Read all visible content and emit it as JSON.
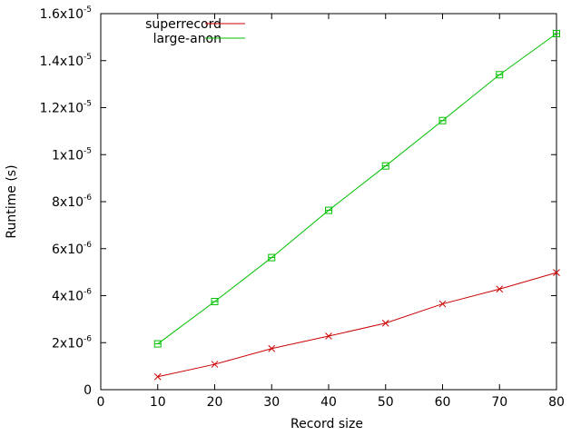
{
  "chart_data": {
    "type": "line",
    "title": "",
    "xlabel": "Record size",
    "ylabel": "Runtime (s)",
    "xlim": [
      0,
      80
    ],
    "ylim": [
      0,
      1.6e-05
    ],
    "grid": false,
    "legend_position": "top-left",
    "x_ticks": [
      {
        "value": 0,
        "label": "0"
      },
      {
        "value": 10,
        "label": "10"
      },
      {
        "value": 20,
        "label": "20"
      },
      {
        "value": 30,
        "label": "30"
      },
      {
        "value": 40,
        "label": "40"
      },
      {
        "value": 50,
        "label": "50"
      },
      {
        "value": 60,
        "label": "60"
      },
      {
        "value": 70,
        "label": "70"
      },
      {
        "value": 80,
        "label": "80"
      }
    ],
    "y_ticks": [
      {
        "value": 0,
        "mantissa": "0",
        "exponent": ""
      },
      {
        "value": 2e-06,
        "mantissa": "2x10",
        "exponent": "-6"
      },
      {
        "value": 4e-06,
        "mantissa": "4x10",
        "exponent": "-6"
      },
      {
        "value": 6e-06,
        "mantissa": "6x10",
        "exponent": "-6"
      },
      {
        "value": 8e-06,
        "mantissa": "8x10",
        "exponent": "-6"
      },
      {
        "value": 1e-05,
        "mantissa": "1x10",
        "exponent": "-5"
      },
      {
        "value": 1.2e-05,
        "mantissa": "1.2x10",
        "exponent": "-5"
      },
      {
        "value": 1.4e-05,
        "mantissa": "1.4x10",
        "exponent": "-5"
      },
      {
        "value": 1.6e-05,
        "mantissa": "1.6x10",
        "exponent": "-5"
      }
    ],
    "x": [
      10,
      20,
      30,
      40,
      50,
      60,
      70,
      80
    ],
    "series": [
      {
        "name": "superrecord",
        "color": "#cc0000",
        "marker": "x",
        "values": [
          5.5e-07,
          1.08e-06,
          1.75e-06,
          2.28e-06,
          2.83e-06,
          3.65e-06,
          4.28e-06,
          4.98e-06
        ]
      },
      {
        "name": "large-anon",
        "color": "#00c000",
        "marker": "square",
        "values": [
          1.95e-06,
          3.75e-06,
          5.62e-06,
          7.63e-06,
          9.52e-06,
          1.145e-05,
          1.34e-05,
          1.515e-05
        ]
      }
    ]
  }
}
